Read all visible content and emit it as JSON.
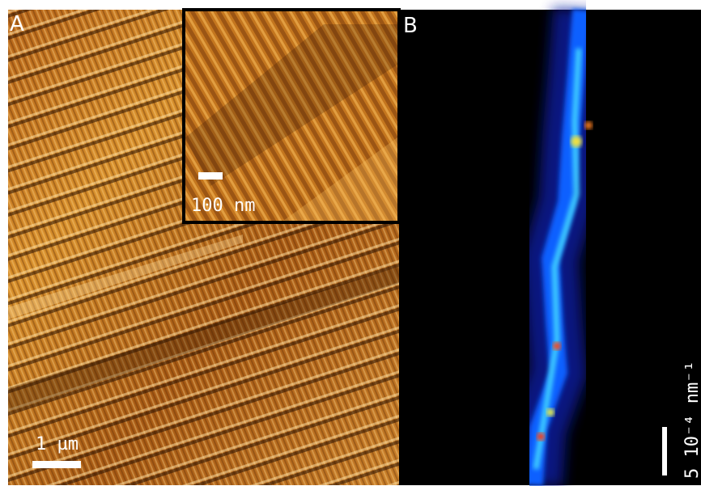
{
  "panel_a": {
    "label": "A",
    "scale_bar": "1 µm",
    "inset_scale_bar": "100 nm"
  },
  "panel_b": {
    "label": "B",
    "scale_bar": "5 10⁻⁴ nm⁻¹"
  }
}
